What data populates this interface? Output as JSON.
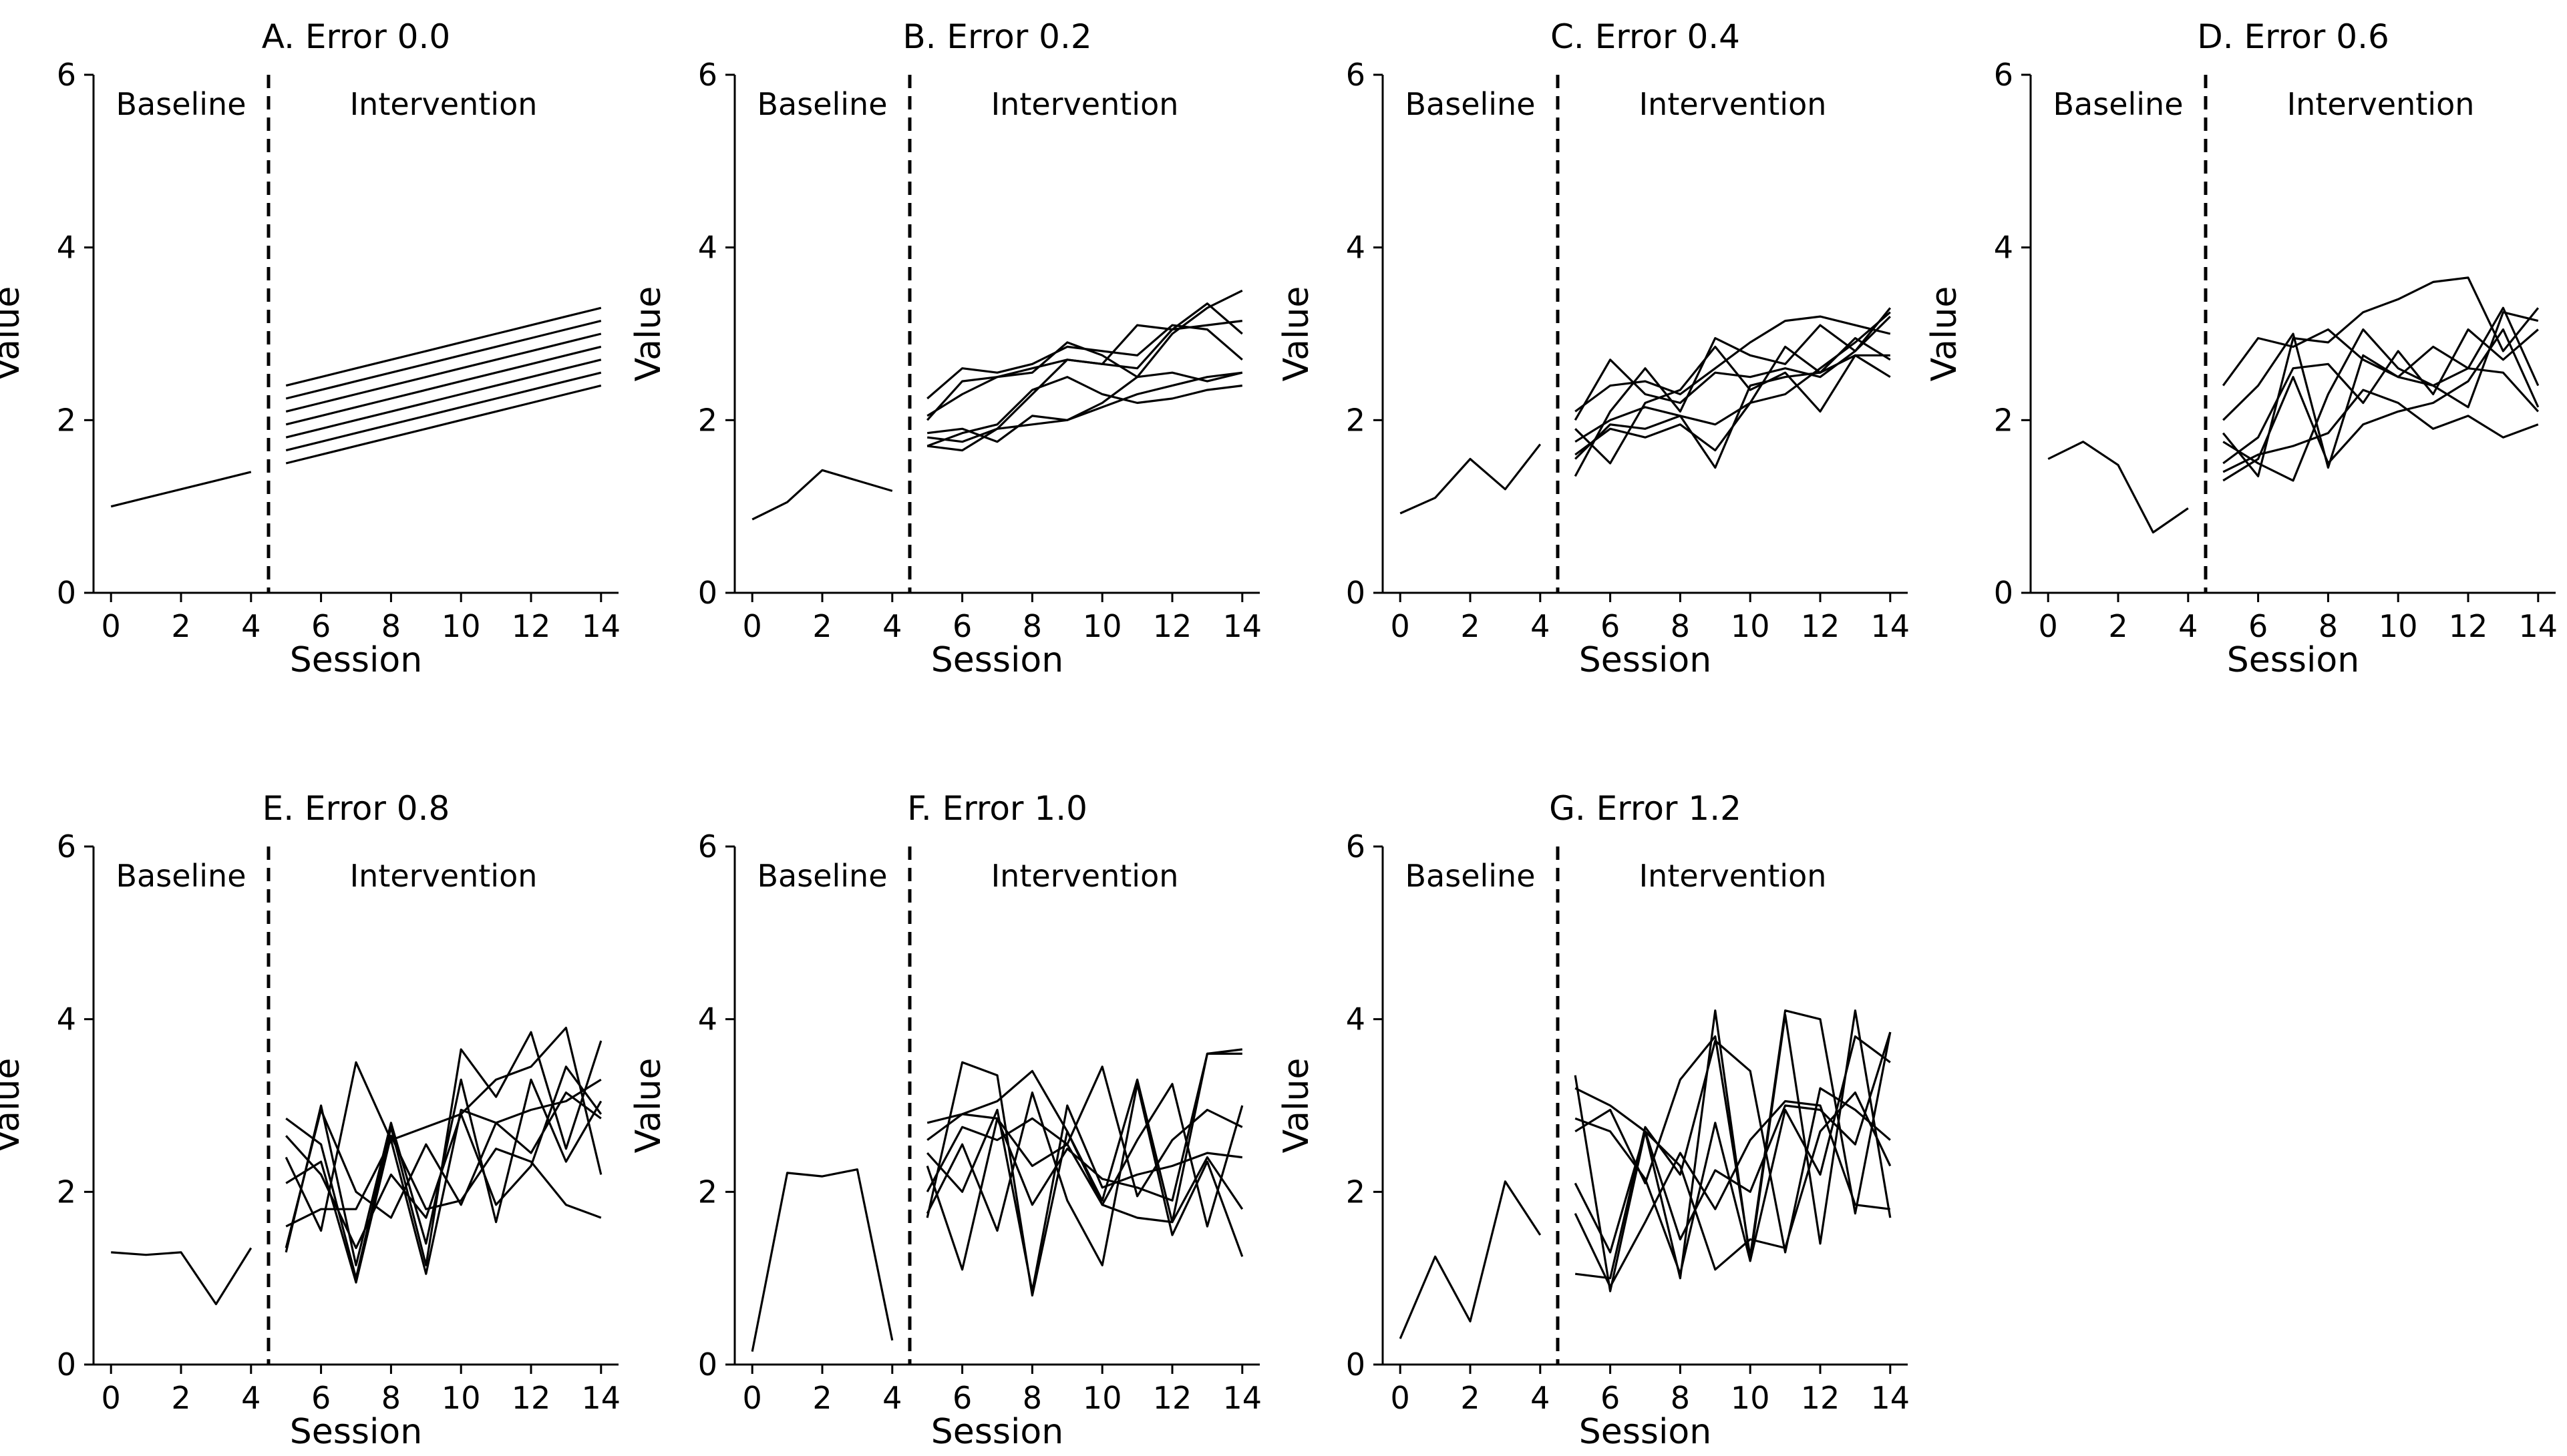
{
  "chart_data": [
    {
      "type": "line",
      "title": "A. Error 0.0",
      "xlabel": "Session",
      "ylabel": "Value",
      "xlim": [
        -0.5,
        14.5
      ],
      "ylim": [
        0,
        6
      ],
      "xticks": [
        0,
        2,
        4,
        6,
        8,
        10,
        12,
        14
      ],
      "yticks": [
        0,
        2,
        4,
        6
      ],
      "phase_change_x": 4.5,
      "phase_labels": [
        "Baseline",
        "Intervention"
      ],
      "baseline": {
        "x": [
          0,
          1,
          2,
          3,
          4
        ],
        "values": [
          1.0,
          1.1,
          1.2,
          1.3,
          1.4
        ]
      },
      "intervention_x": [
        5,
        6,
        7,
        8,
        9,
        10,
        11,
        12,
        13,
        14
      ],
      "intervention_series": [
        {
          "values": [
            1.5,
            1.6,
            1.7,
            1.8,
            1.9,
            2.0,
            2.1,
            2.2,
            2.3,
            2.4
          ]
        },
        {
          "values": [
            1.65,
            1.75,
            1.85,
            1.95,
            2.05,
            2.15,
            2.25,
            2.35,
            2.45,
            2.55
          ]
        },
        {
          "values": [
            1.8,
            1.9,
            2.0,
            2.1,
            2.2,
            2.3,
            2.4,
            2.5,
            2.6,
            2.7
          ]
        },
        {
          "values": [
            1.95,
            2.05,
            2.15,
            2.25,
            2.35,
            2.45,
            2.55,
            2.65,
            2.75,
            2.85
          ]
        },
        {
          "values": [
            2.1,
            2.2,
            2.3,
            2.4,
            2.5,
            2.6,
            2.7,
            2.8,
            2.9,
            3.0
          ]
        },
        {
          "values": [
            2.25,
            2.35,
            2.45,
            2.55,
            2.65,
            2.75,
            2.85,
            2.95,
            3.05,
            3.15
          ]
        },
        {
          "values": [
            2.4,
            2.5,
            2.6,
            2.7,
            2.8,
            2.9,
            3.0,
            3.1,
            3.2,
            3.3
          ]
        }
      ]
    },
    {
      "type": "line",
      "title": "B. Error 0.2",
      "xlabel": "Session",
      "ylabel": "Value",
      "xlim": [
        -0.5,
        14.5
      ],
      "ylim": [
        0,
        6
      ],
      "xticks": [
        0,
        2,
        4,
        6,
        8,
        10,
        12,
        14
      ],
      "yticks": [
        0,
        2,
        4,
        6
      ],
      "phase_change_x": 4.5,
      "phase_labels": [
        "Baseline",
        "Intervention"
      ],
      "baseline": {
        "x": [
          0,
          1,
          2,
          3,
          4
        ],
        "values": [
          0.85,
          1.05,
          1.42,
          1.3,
          1.18
        ]
      },
      "intervention_x": [
        5,
        6,
        7,
        8,
        9,
        10,
        11,
        12,
        13,
        14
      ],
      "intervention_series": [
        {
          "values": [
            2.05,
            2.3,
            2.5,
            2.6,
            2.7,
            2.65,
            2.6,
            3.05,
            3.35,
            3.0
          ]
        },
        {
          "values": [
            1.7,
            1.65,
            1.9,
            2.3,
            2.7,
            2.65,
            3.1,
            3.05,
            3.1,
            3.15
          ]
        },
        {
          "values": [
            1.85,
            1.9,
            1.75,
            2.05,
            2.0,
            2.2,
            2.5,
            3.0,
            3.3,
            3.5
          ]
        },
        {
          "values": [
            2.25,
            2.6,
            2.55,
            2.65,
            2.85,
            2.8,
            2.75,
            3.1,
            3.05,
            2.7
          ]
        },
        {
          "values": [
            1.7,
            1.85,
            1.95,
            2.35,
            2.5,
            2.3,
            2.2,
            2.25,
            2.35,
            2.4
          ]
        },
        {
          "values": [
            1.8,
            1.75,
            1.9,
            1.95,
            2.0,
            2.15,
            2.3,
            2.4,
            2.5,
            2.55
          ]
        },
        {
          "values": [
            2.0,
            2.45,
            2.5,
            2.55,
            2.9,
            2.75,
            2.5,
            2.55,
            2.45,
            2.55
          ]
        }
      ]
    },
    {
      "type": "line",
      "title": "C. Error 0.4",
      "xlabel": "Session",
      "ylabel": "Value",
      "xlim": [
        -0.5,
        14.5
      ],
      "ylim": [
        0,
        6
      ],
      "xticks": [
        0,
        2,
        4,
        6,
        8,
        10,
        12,
        14
      ],
      "yticks": [
        0,
        2,
        4,
        6
      ],
      "phase_change_x": 4.5,
      "phase_labels": [
        "Baseline",
        "Intervention"
      ],
      "baseline": {
        "x": [
          0,
          1,
          2,
          3,
          4
        ],
        "values": [
          0.92,
          1.1,
          1.55,
          1.2,
          1.72
        ]
      },
      "intervention_x": [
        5,
        6,
        7,
        8,
        9,
        10,
        11,
        12,
        13,
        14
      ],
      "intervention_series": [
        {
          "values": [
            2.0,
            2.7,
            2.3,
            2.2,
            2.55,
            2.5,
            2.6,
            2.5,
            2.8,
            3.2
          ]
        },
        {
          "values": [
            1.6,
            1.9,
            1.8,
            1.95,
            1.65,
            2.2,
            2.85,
            2.55,
            2.75,
            2.5
          ]
        },
        {
          "values": [
            1.35,
            2.1,
            2.6,
            2.1,
            2.95,
            2.75,
            2.65,
            3.1,
            2.8,
            3.3
          ]
        },
        {
          "values": [
            2.1,
            2.4,
            2.45,
            2.3,
            2.6,
            2.9,
            3.15,
            3.2,
            3.1,
            3.0
          ]
        },
        {
          "values": [
            1.55,
            1.95,
            1.9,
            2.05,
            1.45,
            2.4,
            2.5,
            2.55,
            2.95,
            2.7
          ]
        },
        {
          "values": [
            1.9,
            1.5,
            2.2,
            2.35,
            2.85,
            2.35,
            2.55,
            2.1,
            2.75,
            2.75
          ]
        },
        {
          "values": [
            1.75,
            2.0,
            2.15,
            2.05,
            1.95,
            2.2,
            2.3,
            2.6,
            2.9,
            3.25
          ]
        }
      ]
    },
    {
      "type": "line",
      "title": "D. Error 0.6",
      "xlabel": "Session",
      "ylabel": "Value",
      "xlim": [
        -0.5,
        14.5
      ],
      "ylim": [
        0,
        6
      ],
      "xticks": [
        0,
        2,
        4,
        6,
        8,
        10,
        12,
        14
      ],
      "yticks": [
        0,
        2,
        4,
        6
      ],
      "phase_change_x": 4.5,
      "phase_labels": [
        "Baseline",
        "Intervention"
      ],
      "baseline": {
        "x": [
          0,
          1,
          2,
          3,
          4
        ],
        "values": [
          1.55,
          1.75,
          1.48,
          0.7,
          0.98
        ]
      },
      "intervention_x": [
        5,
        6,
        7,
        8,
        9,
        10,
        11,
        12,
        13,
        14
      ],
      "intervention_series": [
        {
          "values": [
            2.4,
            2.95,
            2.85,
            3.05,
            2.7,
            2.5,
            2.4,
            2.6,
            3.3,
            2.4
          ]
        },
        {
          "values": [
            1.85,
            1.35,
            2.95,
            2.9,
            3.25,
            3.4,
            3.6,
            3.65,
            2.8,
            3.3
          ]
        },
        {
          "values": [
            1.5,
            1.8,
            2.6,
            2.65,
            2.2,
            2.8,
            2.3,
            3.05,
            2.7,
            3.05
          ]
        },
        {
          "values": [
            1.3,
            1.55,
            2.5,
            1.5,
            1.95,
            2.1,
            2.2,
            2.45,
            3.05,
            2.15
          ]
        },
        {
          "values": [
            2.0,
            2.4,
            3.0,
            1.45,
            2.75,
            2.5,
            2.85,
            2.6,
            2.55,
            2.1
          ]
        },
        {
          "values": [
            1.75,
            1.5,
            1.3,
            2.3,
            3.05,
            2.6,
            2.4,
            2.15,
            3.25,
            3.15
          ]
        },
        {
          "values": [
            1.4,
            1.6,
            1.7,
            1.85,
            2.35,
            2.2,
            1.9,
            2.05,
            1.8,
            1.95
          ]
        }
      ]
    },
    {
      "type": "line",
      "title": "E. Error 0.8",
      "xlabel": "Session",
      "ylabel": "Value",
      "xlim": [
        -0.5,
        14.5
      ],
      "ylim": [
        0,
        6
      ],
      "xticks": [
        0,
        2,
        4,
        6,
        8,
        10,
        12,
        14
      ],
      "yticks": [
        0,
        2,
        4,
        6
      ],
      "phase_change_x": 4.5,
      "phase_labels": [
        "Baseline",
        "Intervention"
      ],
      "baseline": {
        "x": [
          0,
          1,
          2,
          3,
          4
        ],
        "values": [
          1.3,
          1.27,
          1.3,
          0.7,
          1.35
        ]
      },
      "intervention_x": [
        5,
        6,
        7,
        8,
        9,
        10,
        11,
        12,
        13,
        14
      ],
      "intervention_series": [
        {
          "values": [
            2.85,
            2.55,
            1.0,
            2.75,
            1.15,
            3.65,
            3.1,
            3.85,
            2.5,
            3.75
          ]
        },
        {
          "values": [
            1.3,
            3.0,
            1.15,
            2.8,
            1.4,
            3.3,
            1.65,
            3.3,
            2.35,
            3.05
          ]
        },
        {
          "values": [
            2.4,
            1.55,
            3.5,
            2.6,
            2.75,
            2.9,
            3.3,
            3.45,
            3.9,
            2.2
          ]
        },
        {
          "values": [
            1.6,
            1.8,
            1.8,
            2.6,
            1.05,
            2.95,
            2.8,
            2.95,
            3.05,
            3.3
          ]
        },
        {
          "values": [
            2.1,
            2.35,
            0.95,
            2.65,
            1.8,
            1.9,
            2.5,
            2.35,
            1.85,
            1.7
          ]
        },
        {
          "values": [
            2.65,
            2.2,
            1.35,
            2.2,
            1.7,
            2.9,
            1.85,
            2.3,
            3.45,
            2.9
          ]
        },
        {
          "values": [
            1.35,
            2.95,
            2.0,
            1.7,
            2.55,
            1.85,
            2.8,
            2.45,
            3.15,
            2.85
          ]
        }
      ]
    },
    {
      "type": "line",
      "title": "F. Error 1.0",
      "xlabel": "Session",
      "ylabel": "Value",
      "xlim": [
        -0.5,
        14.5
      ],
      "ylim": [
        0,
        6
      ],
      "xticks": [
        0,
        2,
        4,
        6,
        8,
        10,
        12,
        14
      ],
      "yticks": [
        0,
        2,
        4,
        6
      ],
      "phase_change_x": 4.5,
      "phase_labels": [
        "Baseline",
        "Intervention"
      ],
      "baseline": {
        "x": [
          0,
          1,
          2,
          3,
          4
        ],
        "values": [
          0.15,
          2.22,
          2.18,
          2.26,
          0.28
        ]
      },
      "intervention_x": [
        5,
        6,
        7,
        8,
        9,
        10,
        11,
        12,
        13,
        14
      ],
      "intervention_series": [
        {
          "values": [
            2.8,
            2.9,
            3.05,
            3.4,
            2.7,
            1.85,
            1.7,
            1.65,
            3.6,
            3.6
          ]
        },
        {
          "values": [
            1.7,
            3.5,
            3.35,
            0.8,
            2.7,
            1.9,
            3.3,
            1.65,
            2.4,
            1.8
          ]
        },
        {
          "values": [
            2.6,
            2.9,
            2.85,
            2.3,
            2.55,
            3.45,
            1.95,
            2.6,
            2.95,
            2.75
          ]
        },
        {
          "values": [
            2.3,
            1.1,
            2.85,
            1.85,
            2.5,
            2.15,
            2.05,
            1.9,
            3.6,
            3.65
          ]
        },
        {
          "values": [
            1.75,
            2.55,
            1.55,
            3.15,
            1.9,
            1.15,
            3.25,
            1.5,
            2.35,
            1.25
          ]
        },
        {
          "values": [
            2.45,
            2.0,
            2.95,
            0.85,
            3.0,
            2.05,
            2.2,
            2.3,
            2.45,
            2.4
          ]
        },
        {
          "values": [
            2.0,
            2.75,
            2.6,
            2.85,
            2.55,
            1.85,
            2.6,
            3.25,
            1.6,
            3.0
          ]
        }
      ]
    },
    {
      "type": "line",
      "title": "G. Error 1.2",
      "xlabel": "Session",
      "ylabel": "Value",
      "xlim": [
        -0.5,
        14.5
      ],
      "ylim": [
        0,
        6
      ],
      "xticks": [
        0,
        2,
        4,
        6,
        8,
        10,
        12,
        14
      ],
      "yticks": [
        0,
        2,
        4,
        6
      ],
      "phase_change_x": 4.5,
      "phase_labels": [
        "Baseline",
        "Intervention"
      ],
      "baseline": {
        "x": [
          0,
          1,
          2,
          3,
          4
        ],
        "values": [
          0.3,
          1.25,
          0.5,
          2.12,
          1.5
        ]
      },
      "intervention_x": [
        5,
        6,
        7,
        8,
        9,
        10,
        11,
        12,
        13,
        14
      ],
      "intervention_series": [
        {
          "values": [
            3.35,
            0.85,
            2.7,
            1.0,
            4.1,
            1.2,
            4.05,
            1.4,
            4.1,
            1.7
          ]
        },
        {
          "values": [
            1.05,
            1.0,
            2.75,
            2.2,
            3.75,
            3.4,
            1.3,
            3.2,
            2.95,
            2.6
          ]
        },
        {
          "values": [
            2.7,
            2.95,
            2.1,
            3.3,
            3.8,
            1.25,
            4.1,
            4.0,
            1.75,
            3.85
          ]
        },
        {
          "values": [
            2.85,
            2.7,
            2.15,
            1.05,
            2.8,
            1.2,
            2.95,
            2.2,
            3.8,
            3.5
          ]
        },
        {
          "values": [
            1.75,
            0.9,
            1.65,
            2.45,
            1.8,
            2.6,
            3.05,
            3.0,
            1.85,
            1.8
          ]
        },
        {
          "values": [
            3.2,
            3.0,
            2.7,
            2.3,
            1.1,
            1.45,
            1.35,
            2.7,
            3.15,
            2.3
          ]
        },
        {
          "values": [
            2.1,
            1.3,
            2.7,
            1.45,
            2.25,
            2.0,
            3.0,
            2.95,
            2.55,
            3.85
          ]
        }
      ]
    }
  ]
}
